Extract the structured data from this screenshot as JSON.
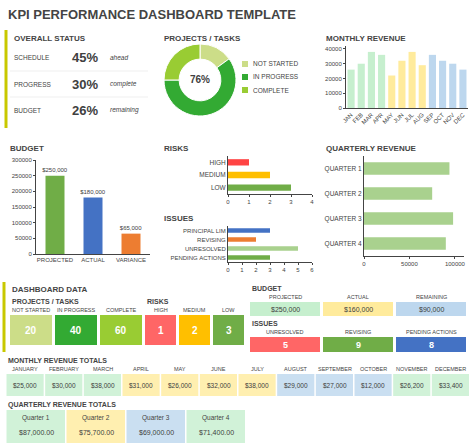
{
  "title": "KPI PERFORMANCE DASHBOARD TEMPLATE",
  "chart_data": [
    {
      "type": "table",
      "title": "OVERALL STATUS",
      "color": "#C8C800",
      "categories": [
        "SCHEDULE",
        "PROGRESS",
        "BUDGET"
      ],
      "values": [
        45,
        30,
        26
      ],
      "value_labels": [
        "45%",
        "30%",
        "26%"
      ],
      "annotations": [
        "ahead",
        "complete",
        "remaining"
      ]
    },
    {
      "type": "pie",
      "title": "PROJECTS / TASKS",
      "categories": [
        "NOT STARTED",
        "IN PROGRESS",
        "COMPLETE"
      ],
      "values": [
        15,
        60,
        25
      ],
      "colors": [
        "#CCDD88",
        "#33AA33",
        "#99CC33"
      ],
      "legend": "right",
      "annotations": [
        "76%"
      ]
    },
    {
      "type": "bar",
      "title": "MONTHLY REVENUE",
      "categories": [
        "JAN",
        "FEB",
        "MAR",
        "APR",
        "MAY",
        "JUN",
        "JUL",
        "AUG",
        "SEP",
        "OCT",
        "NOV",
        "DEC"
      ],
      "values": [
        26000,
        30000,
        38000,
        36000,
        22000,
        32000,
        38000,
        29000,
        36000,
        32000,
        30000,
        26000
      ],
      "colors": [
        "#C6EFCE",
        "#C6EFCE",
        "#C6EFCE",
        "#C6EFCE",
        "#FFEB9C",
        "#FFEB9C",
        "#FFEB9C",
        "#FFEB9C",
        "#BDD7EE",
        "#BDD7EE",
        "#BDD7EE",
        "#BDD7EE"
      ],
      "ylim": [
        0,
        42000
      ],
      "yticks": [
        0,
        10000,
        20000,
        30000,
        40000
      ],
      "grid": false
    },
    {
      "type": "bar",
      "title": "BUDGET",
      "categories": [
        "PROJECTED",
        "ACTUAL",
        "VARIANCE"
      ],
      "values": [
        250000,
        180000,
        65000
      ],
      "colors": [
        "#70AD47",
        "#4472C4",
        "#ED7D31"
      ],
      "data_labels": true,
      "value_labels": [
        "$250,000",
        "$180,000",
        "$65,000"
      ],
      "ylim": [
        0,
        300000
      ],
      "yticks": [
        0,
        50000,
        100000,
        150000,
        200000,
        250000,
        300000
      ],
      "grid": false
    },
    {
      "type": "bar",
      "orientation": "horizontal",
      "title": "RISKS",
      "categories": [
        "LOW",
        "MEDIUM",
        "HIGH"
      ],
      "values": [
        3,
        2,
        1
      ],
      "colors": [
        "#70AD47",
        "#FFBF00",
        "#FF4444"
      ],
      "xlim": [
        0,
        4
      ],
      "xticks": [
        0,
        1,
        2,
        3,
        4
      ],
      "grid": false
    },
    {
      "type": "bar",
      "orientation": "horizontal",
      "title": "ISSUES",
      "categories": [
        "PENDING ACTIONS",
        "UNRESOLVED",
        "REVISING",
        "PRINCIPAL LIM"
      ],
      "values": [
        3,
        5,
        2,
        3
      ],
      "colors": [
        "#70AD47",
        "#A9D18E",
        "#ED7D31",
        "#4472C4"
      ],
      "xlim": [
        0,
        6
      ],
      "xticks": [
        0,
        1,
        2,
        3,
        4,
        5,
        6
      ],
      "grid": false
    },
    {
      "type": "bar",
      "orientation": "horizontal",
      "title": "QUARTERLY REVENUE",
      "categories": [
        "QUARTER 4",
        "QUARTER 3",
        "QUARTER 2",
        "QUARTER 1"
      ],
      "values": [
        90000,
        98000,
        75000,
        94000
      ],
      "color": "#A9D18E",
      "xlim": [
        0,
        110000
      ],
      "xticks": [
        0,
        50000,
        100000
      ],
      "grid": false
    },
    {
      "type": "tiles",
      "title": "DASHBOARD DATA",
      "color": "#C8C800",
      "series": [
        {
          "name": "PROJECTS / TASKS",
          "categories": [
            "NOT STARTED",
            "IN PROGRESS",
            "COMPLETE"
          ],
          "values": [
            20,
            40,
            60
          ],
          "colors": [
            "#CCDD88",
            "#33AA33",
            "#99CC33"
          ]
        },
        {
          "name": "RISKS",
          "categories": [
            "HIGH",
            "MEDIUM",
            "LOW"
          ],
          "values": [
            1,
            2,
            3
          ],
          "colors": [
            "#FF6666",
            "#FFBF00",
            "#70AD47"
          ]
        },
        {
          "name": "BUDGET",
          "categories": [
            "PROJECTED",
            "ACTUAL",
            "REMAINING"
          ],
          "values": [
            250000,
            160000,
            90000
          ],
          "value_labels": [
            "$250,000",
            "$160,000",
            "$90,000"
          ],
          "colors": [
            "#C6EFCE",
            "#FFEB9C",
            "#BDD7EE"
          ]
        },
        {
          "name": "ISSUES",
          "categories": [
            "UNRESOLVED",
            "REVISING",
            "PENDING ACTIONS"
          ],
          "values": [
            5,
            9,
            8
          ],
          "colors": [
            "#FF6666",
            "#70AD47",
            "#4472C4"
          ]
        }
      ]
    },
    {
      "type": "tiles",
      "title": "MONTHLY REVENUE TOTALS",
      "categories": [
        "JANUARY",
        "FEBRUARY",
        "MARCH",
        "APRIL",
        "MAY",
        "JUNE",
        "JULY",
        "AUGUST",
        "SEPTEMBER",
        "OCTOBER",
        "NOVEMBER",
        "DECEMBER"
      ],
      "values": [
        25000,
        30000,
        38000,
        31000,
        26000,
        32000,
        38000,
        29000,
        27000,
        12000,
        26200,
        33400
      ],
      "value_labels": [
        "$25,000",
        "$30,000",
        "$38,000",
        "$31,000",
        "$26,000",
        "$32,000",
        "$38,000",
        "$29,000",
        "$27,000",
        "$12,000",
        "$26,200",
        "$33,400"
      ],
      "colors": [
        "#C6EFCE",
        "#C6EFCE",
        "#C6EFCE",
        "#FFEB9C",
        "#FFEB9C",
        "#FFEB9C",
        "#FFEB9C",
        "#BDD7EE",
        "#BDD7EE",
        "#BDD7EE",
        "#C6EFCE",
        "#C6EFCE"
      ]
    },
    {
      "type": "tiles",
      "title": "QUARTERLY REVENUE TOTALS",
      "categories": [
        "Quarter 1",
        "Quarter 2",
        "Quarter 3",
        "Quarter 4"
      ],
      "values": [
        87000,
        75700,
        69000,
        71400
      ],
      "value_labels": [
        "$87,000.00",
        "$75,700.00",
        "$69,000.00",
        "$71,400.00"
      ],
      "colors": [
        "#C6EFCE",
        "#FFEB9C",
        "#BDD7EE",
        "#C6EFCE"
      ]
    }
  ]
}
